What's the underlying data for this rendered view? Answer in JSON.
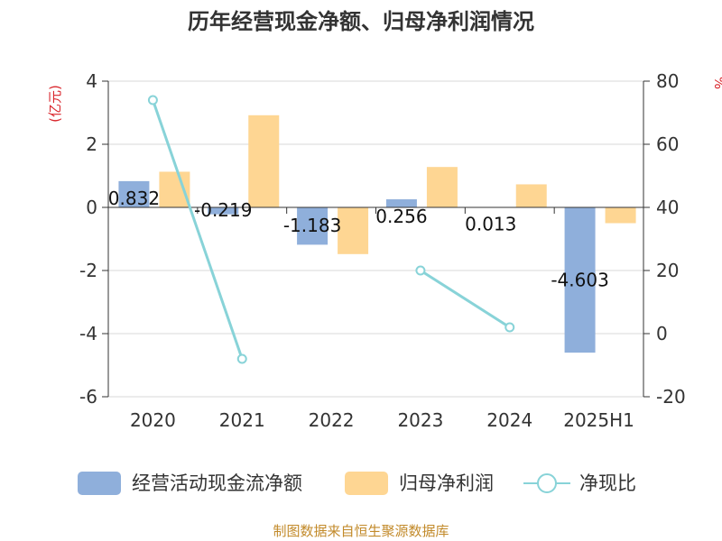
{
  "chart_data": {
    "type": "bar",
    "title": "历年经营现金净额、归母净利润情况",
    "categories": [
      "2020",
      "2021",
      "2022",
      "2023",
      "2024",
      "2025H1"
    ],
    "left_axis": {
      "unit": "(亿元)",
      "range": [
        -6,
        4
      ],
      "ticks": [
        "4",
        "2",
        "0",
        "-2",
        "-4",
        "-6"
      ],
      "tick_values": [
        4,
        2,
        0,
        -2,
        -4,
        -6
      ]
    },
    "right_axis": {
      "unit": "%",
      "range": [
        -20,
        80
      ],
      "ticks": [
        "80",
        "60",
        "40",
        "20",
        "0",
        "-20"
      ],
      "tick_values": [
        80,
        60,
        40,
        20,
        0,
        -20
      ]
    },
    "grid": true,
    "legend_position": "bottom",
    "series": [
      {
        "name": "经营活动现金流净额",
        "type": "bar",
        "axis": "left",
        "color": "#8fafdb",
        "values": [
          0.832,
          -0.219,
          -1.183,
          0.256,
          0.013,
          -4.603
        ],
        "labels": [
          "0.832",
          "-0.219",
          "-1.183",
          "0.256",
          "0.013",
          "-4.603"
        ]
      },
      {
        "name": "归母净利润",
        "type": "bar",
        "axis": "left",
        "color": "#fed693",
        "values": [
          1.13,
          2.92,
          -1.48,
          1.28,
          0.73,
          -0.5
        ]
      },
      {
        "name": "净现比",
        "type": "line",
        "axis": "right",
        "color": "#88d3d8",
        "values": [
          74,
          -8,
          null,
          20,
          2,
          null
        ]
      }
    ]
  },
  "footer": {
    "source": "制图数据来自恒生聚源数据库"
  }
}
